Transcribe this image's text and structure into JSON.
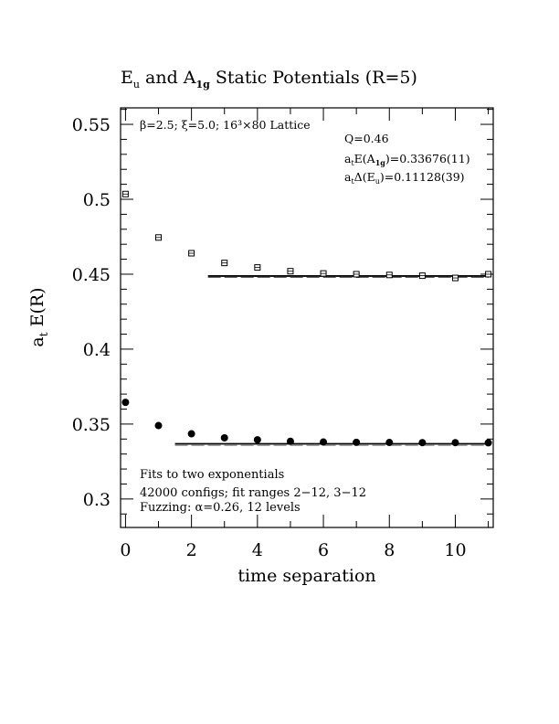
{
  "chart_data": {
    "type": "scatter",
    "title": {
      "main": "E",
      "sub1": "u",
      "mid": " and A",
      "sub2": "1g",
      "rest": " Static Potentials (R=5)"
    },
    "xlabel": "time separation",
    "ylabel": {
      "main": "a",
      "sub": "t",
      "rest": " E(R)"
    },
    "xlim": [
      -0.15,
      11.15
    ],
    "ylim": [
      0.281,
      0.561
    ],
    "xticks": [
      0,
      2,
      4,
      6,
      8,
      10
    ],
    "xtick_labels": [
      "0",
      "2",
      "4",
      "6",
      "8",
      "10"
    ],
    "yticks": [
      0.3,
      0.35,
      0.4,
      0.45,
      0.5,
      0.55
    ],
    "ytick_labels": [
      "0.3",
      "0.35",
      "0.4",
      "0.45",
      "0.5",
      "0.55"
    ],
    "series": [
      {
        "name": "Eu",
        "marker": "open-square",
        "x": [
          0,
          1,
          2,
          3,
          4,
          5,
          6,
          7,
          8,
          9,
          10,
          11
        ],
        "y": [
          0.5035,
          0.4745,
          0.464,
          0.4575,
          0.4545,
          0.452,
          0.4505,
          0.45,
          0.4495,
          0.449,
          0.4475,
          0.45
        ],
        "fit": {
          "x": [
            2.5,
            11
          ],
          "y": 0.4488
        }
      },
      {
        "name": "A1g",
        "marker": "filled-circle",
        "x": [
          0,
          1,
          2,
          3,
          4,
          5,
          6,
          7,
          8,
          9,
          10,
          11
        ],
        "y": [
          0.3645,
          0.349,
          0.3435,
          0.3408,
          0.3395,
          0.3385,
          0.338,
          0.3378,
          0.3377,
          0.3376,
          0.3376,
          0.3375
        ],
        "fit": {
          "x": [
            1.5,
            11
          ],
          "y": 0.3368
        }
      }
    ],
    "annotations": {
      "lattice": "β=2.5; ξ=5.0; 16³×80 Lattice",
      "q": "Q=0.46",
      "ea1g": {
        "a": "a",
        "t": "t",
        "e": "E(A",
        "sub": "1g",
        "val": ")=0.33676(11)"
      },
      "deu": {
        "a": "a",
        "t": "t",
        "d": "Δ(E",
        "sub": "u",
        "val": ")=0.11128(39)"
      },
      "fits": "Fits to two exponentials",
      "configs": "42000 configs; fit ranges 2−12, 3−12",
      "fuzzing": "Fuzzing: α=0.26, 12 levels"
    }
  }
}
